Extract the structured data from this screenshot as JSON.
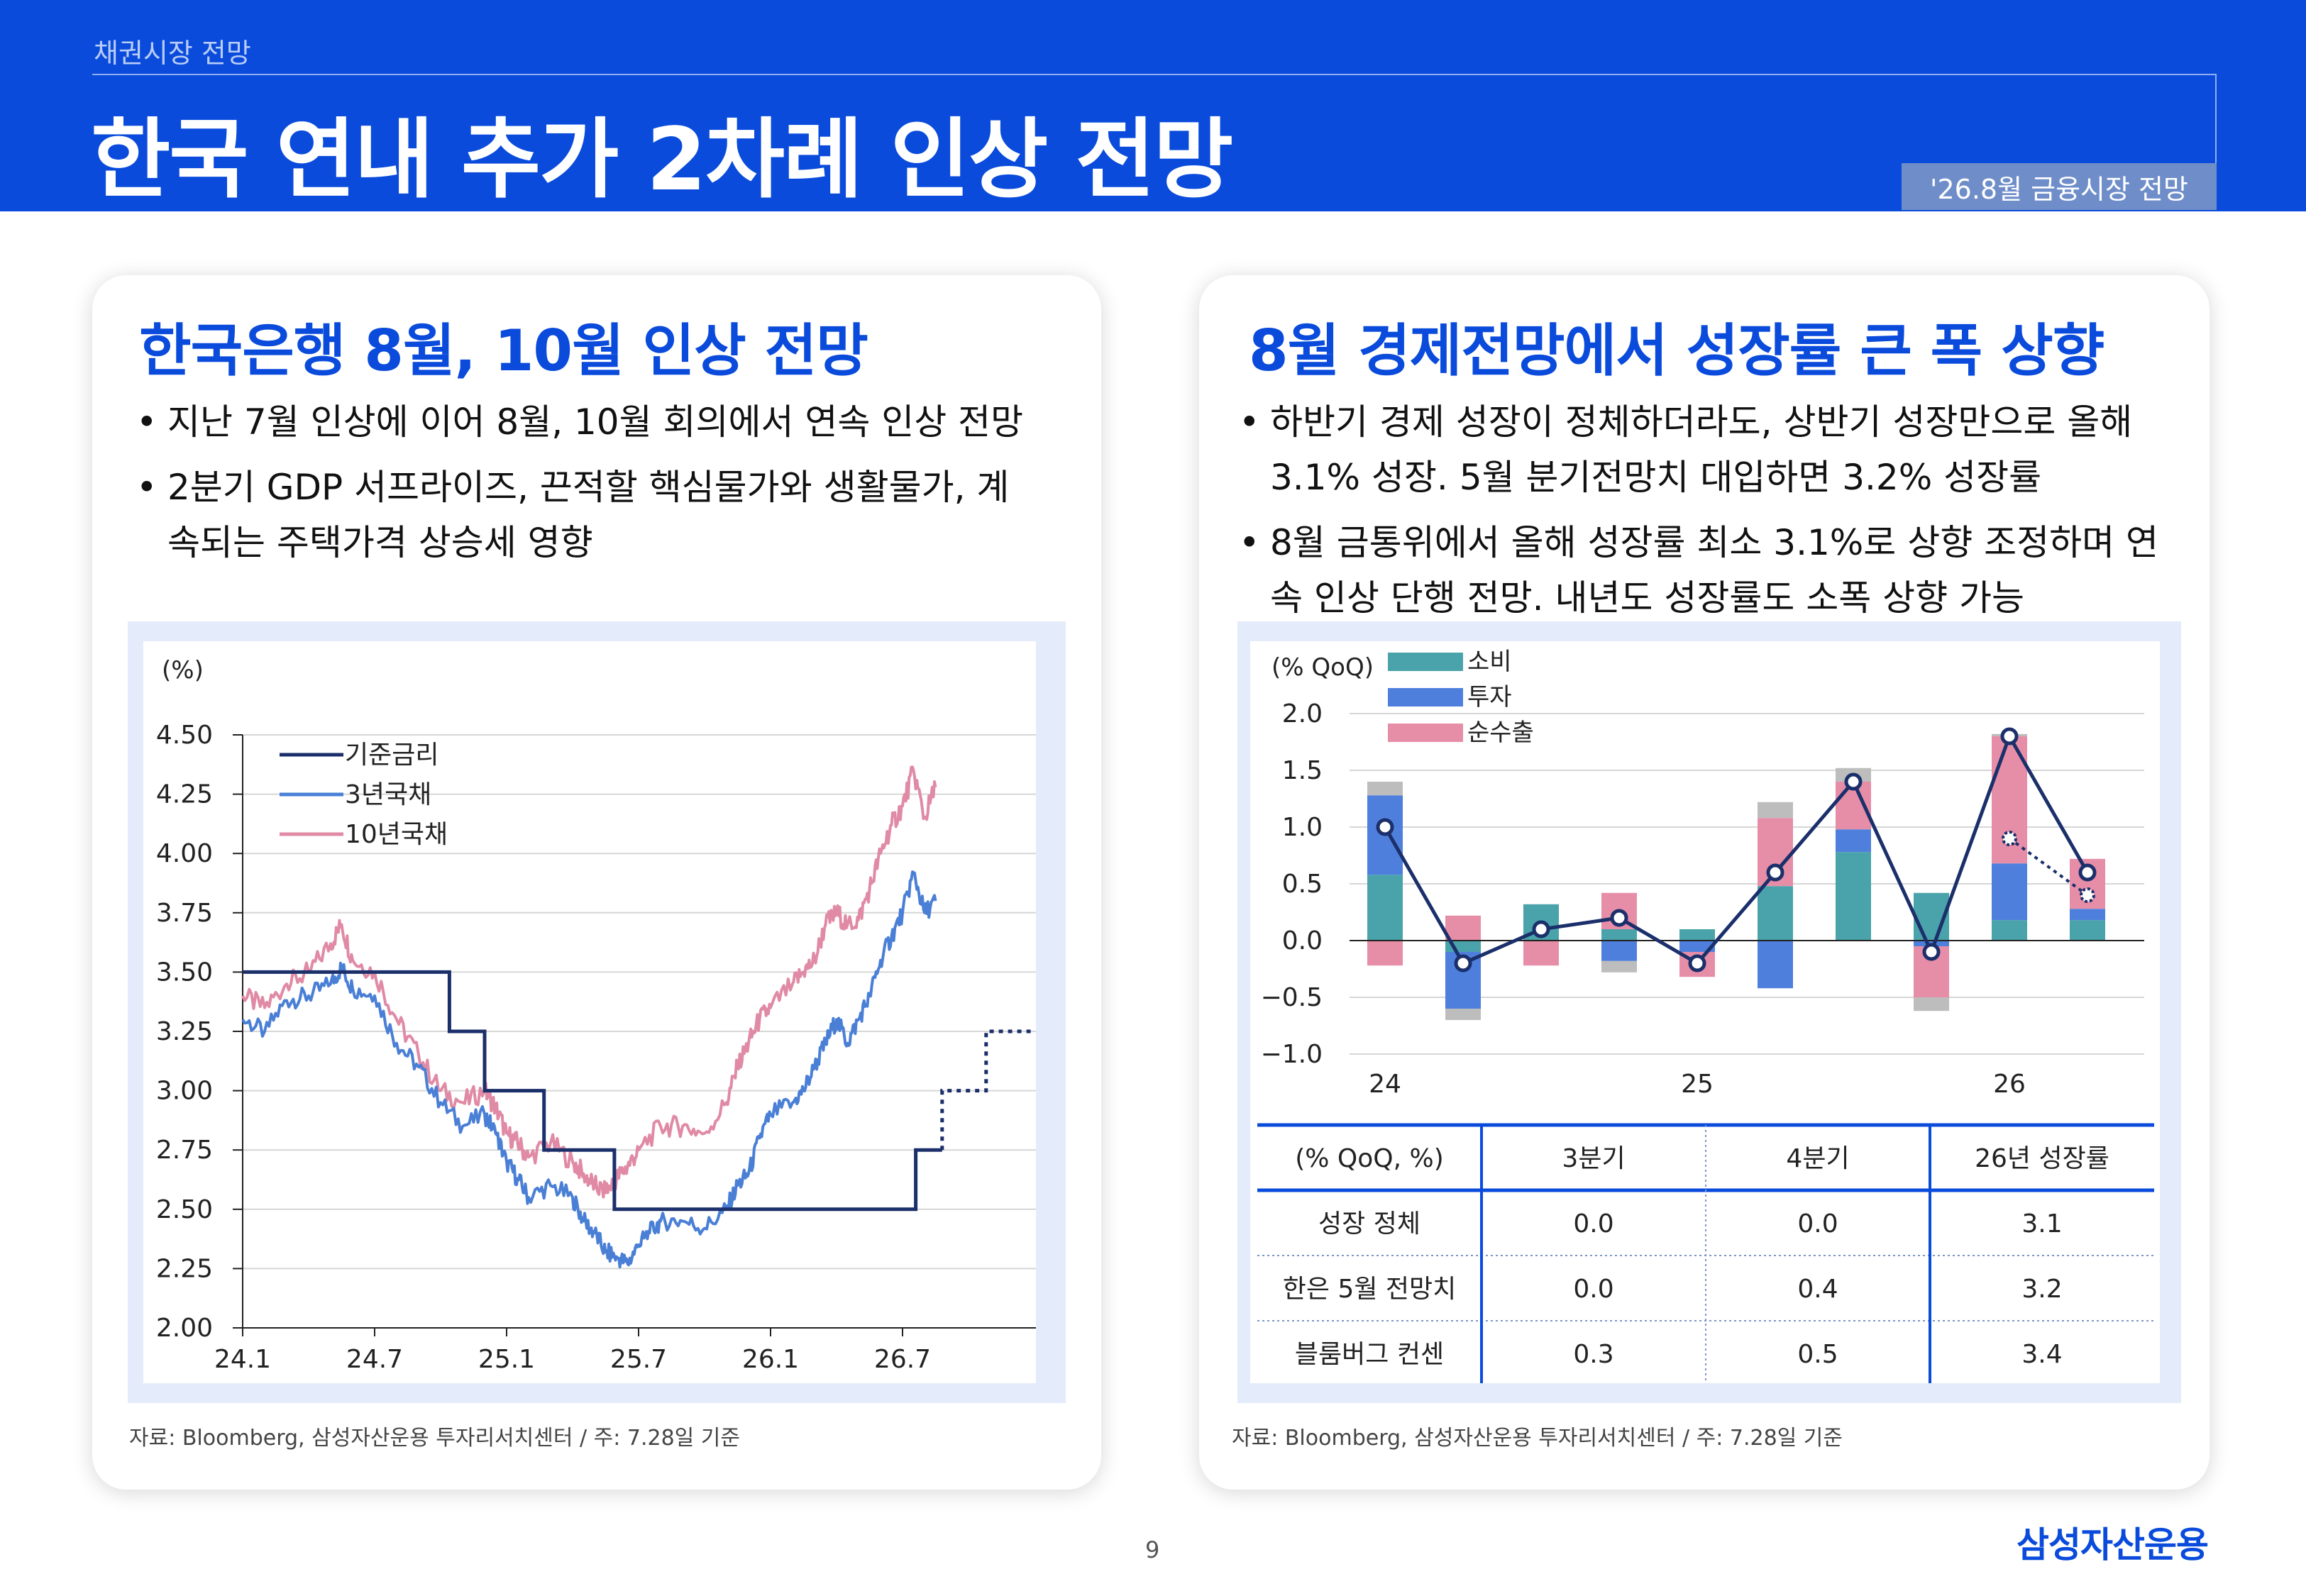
{
  "header": {
    "section": "채권시장 전망",
    "title": "한국 연내 추가 2차례 인상 전망",
    "badge": "'26.8월 금융시장 전망"
  },
  "left": {
    "heading": "한국은행 8월, 10월 인상 전망",
    "bullets": [
      "지난 7월 인상에 이어 8월, 10월 회의에서 연속 인상 전망",
      "2분기 GDP 서프라이즈, 끈적할 핵심물가와 생활물가, 계속되는 주택가격 상승세 영향"
    ],
    "source": "자료: Bloomberg, 삼성자산운용 투자리서치센터 / 주: 7.28일 기준"
  },
  "right": {
    "heading": "8월 경제전망에서 성장률 큰 폭 상향",
    "bullets": [
      "하반기 경제 성장이 정체하더라도, 상반기 성장만으로 올해 3.1% 성장. 5월 분기전망치 대입하면 3.2% 성장률",
      "8월 금통위에서 올해 성장률 최소 3.1%로 상향 조정하며 연속 인상 단행 전망. 내년도 성장률도 소폭 상향 가능"
    ],
    "source": "자료: Bloomberg, 삼성자산운용 투자리서치센터 / 주: 7.28일 기준",
    "table": {
      "headers": [
        "(% QoQ, %)",
        "3분기",
        "4분기",
        "26년 성장률"
      ],
      "rows": [
        [
          "성장 정체",
          "0.0",
          "0.0",
          "3.1"
        ],
        [
          "한은 5월 전망치",
          "0.0",
          "0.4",
          "3.2"
        ],
        [
          "블룸버그 컨센",
          "0.3",
          "0.5",
          "3.4"
        ]
      ]
    }
  },
  "chart_data": [
    {
      "type": "line",
      "ylabel": "(%)",
      "ylim": [
        2.0,
        4.5
      ],
      "yticks": [
        "4.50",
        "4.25",
        "4.00",
        "3.75",
        "3.50",
        "3.25",
        "3.00",
        "2.75",
        "2.50",
        "2.25",
        "2.00"
      ],
      "xlim": [
        0,
        36
      ],
      "xticks": [
        {
          "label": "24.1",
          "x": 0
        },
        {
          "label": "24.7",
          "x": 6
        },
        {
          "label": "25.1",
          "x": 12
        },
        {
          "label": "25.7",
          "x": 18
        },
        {
          "label": "26.1",
          "x": 24
        },
        {
          "label": "26.7",
          "x": 30
        }
      ],
      "grid": true,
      "legend": "top-left",
      "series": [
        {
          "name": "기준금리",
          "color": "#1b2f6b",
          "style": "step",
          "points": [
            [
              0,
              3.5
            ],
            [
              9.4,
              3.5
            ],
            [
              9.4,
              3.25
            ],
            [
              11,
              3.25
            ],
            [
              11,
              3.0
            ],
            [
              13.7,
              3.0
            ],
            [
              13.7,
              2.75
            ],
            [
              16.9,
              2.75
            ],
            [
              16.9,
              2.5
            ],
            [
              30.6,
              2.5
            ],
            [
              30.6,
              2.75
            ],
            [
              31.8,
              2.75
            ]
          ],
          "projection": [
            [
              31.8,
              2.75
            ],
            [
              31.8,
              3.0
            ],
            [
              33.8,
              3.0
            ],
            [
              33.8,
              3.25
            ],
            [
              36,
              3.25
            ]
          ]
        },
        {
          "name": "3년국채",
          "color": "#4a7fd6",
          "points": [
            [
              0,
              3.3
            ],
            [
              1,
              3.25
            ],
            [
              2,
              3.38
            ],
            [
              3,
              3.4
            ],
            [
              4,
              3.45
            ],
            [
              4.5,
              3.52
            ],
            [
              5,
              3.43
            ],
            [
              6,
              3.4
            ],
            [
              7,
              3.2
            ],
            [
              8,
              3.1
            ],
            [
              9,
              2.95
            ],
            [
              10,
              2.85
            ],
            [
              11,
              2.9
            ],
            [
              11.5,
              2.82
            ],
            [
              12,
              2.7
            ],
            [
              12.5,
              2.63
            ],
            [
              13,
              2.55
            ],
            [
              14,
              2.6
            ],
            [
              15,
              2.55
            ],
            [
              15.5,
              2.45
            ],
            [
              16,
              2.4
            ],
            [
              16.5,
              2.32
            ],
            [
              17,
              2.3
            ],
            [
              17.5,
              2.27
            ],
            [
              18,
              2.35
            ],
            [
              18.5,
              2.4
            ],
            [
              19,
              2.45
            ],
            [
              20,
              2.45
            ],
            [
              21,
              2.42
            ],
            [
              22,
              2.5
            ],
            [
              22.5,
              2.6
            ],
            [
              23,
              2.65
            ],
            [
              23.5,
              2.8
            ],
            [
              24,
              2.9
            ],
            [
              25,
              2.95
            ],
            [
              25.5,
              3.0
            ],
            [
              26,
              3.1
            ],
            [
              26.5,
              3.2
            ],
            [
              27,
              3.3
            ],
            [
              27.5,
              3.2
            ],
            [
              28,
              3.3
            ],
            [
              28.5,
              3.4
            ],
            [
              29,
              3.55
            ],
            [
              29.5,
              3.65
            ],
            [
              30,
              3.75
            ],
            [
              30.5,
              3.92
            ],
            [
              31,
              3.75
            ],
            [
              31.5,
              3.8
            ]
          ]
        },
        {
          "name": "10년국채",
          "color": "#e08aa5",
          "points": [
            [
              0,
              3.4
            ],
            [
              1,
              3.35
            ],
            [
              2,
              3.45
            ],
            [
              3,
              3.5
            ],
            [
              4,
              3.62
            ],
            [
              4.5,
              3.7
            ],
            [
              5,
              3.55
            ],
            [
              6,
              3.5
            ],
            [
              7,
              3.3
            ],
            [
              8,
              3.15
            ],
            [
              9,
              3.0
            ],
            [
              10,
              2.95
            ],
            [
              11,
              3.0
            ],
            [
              11.5,
              2.93
            ],
            [
              12,
              2.82
            ],
            [
              12.5,
              2.78
            ],
            [
              13,
              2.72
            ],
            [
              14,
              2.78
            ],
            [
              15,
              2.7
            ],
            [
              15.5,
              2.65
            ],
            [
              16,
              2.6
            ],
            [
              16.5,
              2.57
            ],
            [
              17,
              2.63
            ],
            [
              17.5,
              2.68
            ],
            [
              18,
              2.75
            ],
            [
              19,
              2.85
            ],
            [
              20,
              2.85
            ],
            [
              21,
              2.82
            ],
            [
              22,
              2.95
            ],
            [
              22.5,
              3.1
            ],
            [
              23,
              3.2
            ],
            [
              23.5,
              3.3
            ],
            [
              24,
              3.35
            ],
            [
              25,
              3.45
            ],
            [
              25.5,
              3.5
            ],
            [
              26,
              3.55
            ],
            [
              26.5,
              3.7
            ],
            [
              27,
              3.75
            ],
            [
              27.5,
              3.7
            ],
            [
              28,
              3.72
            ],
            [
              28.5,
              3.85
            ],
            [
              29,
              4.0
            ],
            [
              29.5,
              4.12
            ],
            [
              30,
              4.2
            ],
            [
              30.5,
              4.35
            ],
            [
              31,
              4.15
            ],
            [
              31.5,
              4.28
            ]
          ]
        }
      ]
    },
    {
      "type": "bar",
      "stacked": true,
      "ylabel": "(% QoQ)",
      "ylim": [
        -1.0,
        2.0
      ],
      "yticks": [
        "2.0",
        "1.5",
        "1.0",
        "0.5",
        "0.0",
        "-0.5",
        "-1.0"
      ],
      "categories": [
        "24Q1",
        "24Q2",
        "24Q3",
        "24Q4",
        "25Q1",
        "25Q2",
        "25Q3",
        "25Q4",
        "26Q1",
        "26Q2"
      ],
      "xticks": [
        {
          "label": "24",
          "index": 0
        },
        {
          "label": "25",
          "index": 4
        },
        {
          "label": "26",
          "index": 8
        }
      ],
      "grid": true,
      "legend": "top-left",
      "series": [
        {
          "name": "소비",
          "color": "#4aa3aa",
          "values": [
            0.58,
            -0.1,
            0.32,
            0.1,
            0.1,
            0.48,
            0.78,
            0.42,
            0.18,
            0.18
          ]
        },
        {
          "name": "투자",
          "color": "#4f7fdc",
          "values": [
            0.7,
            -0.5,
            0.0,
            -0.18,
            -0.1,
            -0.42,
            0.2,
            -0.05,
            0.5,
            0.1
          ]
        },
        {
          "name": "순수출",
          "color": "#e68ea7",
          "values": [
            -0.22,
            0.22,
            -0.22,
            0.32,
            -0.22,
            0.6,
            0.42,
            -0.45,
            1.12,
            0.44
          ]
        },
        {
          "color": "#bdbdbd",
          "values": [
            0.12,
            -0.1,
            0.0,
            -0.1,
            0.0,
            0.14,
            0.12,
            -0.12,
            0.02,
            0.0
          ]
        }
      ],
      "line": [
        1.0,
        -0.2,
        0.1,
        0.2,
        -0.2,
        0.6,
        1.4,
        -0.1,
        1.8,
        0.6
      ],
      "projection_points": [
        {
          "index": 8,
          "value": 0.9
        },
        {
          "index": 9,
          "value": 0.4
        }
      ]
    }
  ]
}
